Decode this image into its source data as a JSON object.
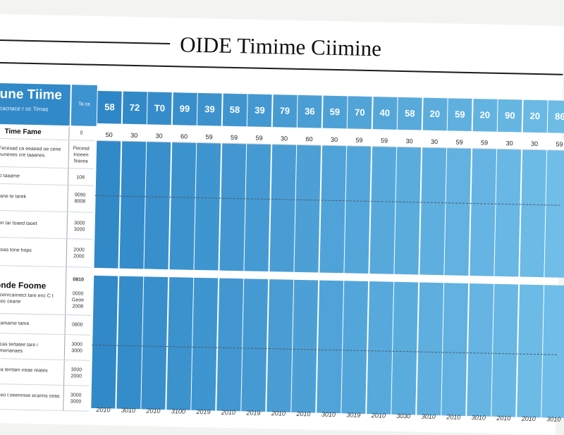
{
  "title": "OIDE Timime Ciimine",
  "left_header": {
    "line1": "une Tiime",
    "line2": "cacnace r oc Tirnas",
    "side": "Ta ca"
  },
  "header_numbers": [
    "58",
    "72",
    "T0",
    "99",
    "39",
    "58",
    "39",
    "79",
    "36",
    "59",
    "70",
    "40",
    "58",
    "20",
    "59",
    "20",
    "90",
    "20",
    "86"
  ],
  "sub_numbers": [
    "50",
    "30",
    "30",
    "60",
    "59",
    "59",
    "59",
    "30",
    "60",
    "30",
    "59",
    "59",
    "30",
    "30",
    "59",
    "59",
    "30",
    "30",
    "59"
  ],
  "footer_numbers": [
    "2010",
    "3010",
    "2010",
    "3100",
    "2019",
    "2010",
    "2019",
    "2010",
    "2010",
    "3010",
    "3019",
    "2010",
    "3030",
    "3010",
    "2010",
    "3010",
    "2010",
    "2010",
    "3010"
  ],
  "section1": {
    "title": "Time Fame",
    "title_val": "0",
    "rows": [
      {
        "label": "Fecesad ca eeaeed oe cene  eunenes cre taaanes.",
        "val": "Pecesd Inoeen fearea"
      },
      {
        "label": "lo taaame",
        "val": "108"
      },
      {
        "label": "fiane  te tarek",
        "val": "9090 8008"
      },
      {
        "label": "ton tar  toaed taoet",
        "val": "3000 3000"
      },
      {
        "label": "ntoas tone hops",
        "val": "2000 2000"
      }
    ]
  },
  "section2": {
    "title": "onde Foome",
    "title_val": "0810",
    "rows": [
      {
        "label": "tecenrcannect tare  enc C t ecec cearie",
        "val": "0000 Geoe 2008"
      },
      {
        "label": "n tamame tame",
        "val": "0800"
      },
      {
        "label": "cecas tertatee tare  i cemenanaes",
        "val": "3000 3000"
      },
      {
        "label": "iaea terrtam  ireae reates",
        "val": "3000 2000"
      },
      {
        "label": "tarieo t eeemnoe ecanns ceas",
        "val": "3000 3000"
      }
    ]
  },
  "colors": {
    "bar_dark": "#3189c8",
    "bar_light": "#6fbde8",
    "header_dark": "#2f86c6",
    "header_light": "#6dbce6"
  }
}
